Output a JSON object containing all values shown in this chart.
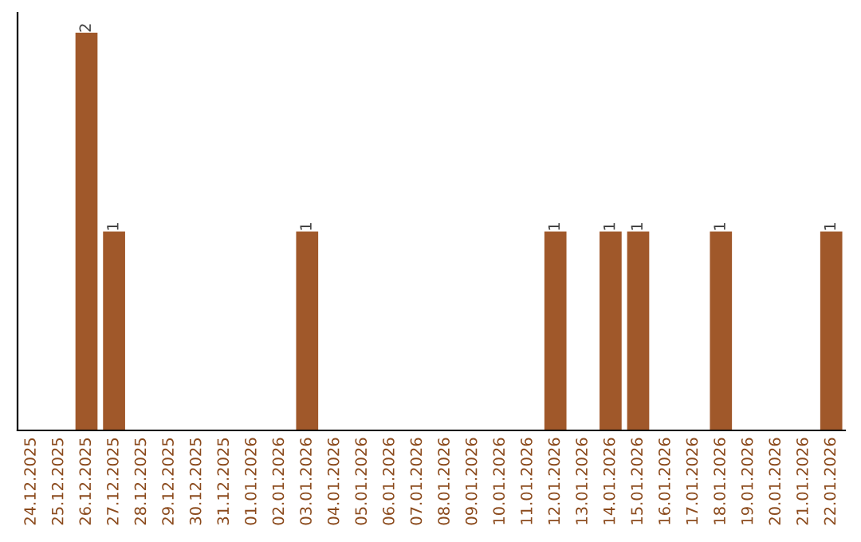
{
  "chart_data": {
    "type": "bar",
    "categories": [
      "24.12.2025",
      "25.12.2025",
      "26.12.2025",
      "27.12.2025",
      "28.12.2025",
      "29.12.2025",
      "30.12.2025",
      "31.12.2025",
      "01.01.2026",
      "02.01.2026",
      "03.01.2026",
      "04.01.2026",
      "05.01.2026",
      "06.01.2026",
      "07.01.2026",
      "08.01.2026",
      "09.01.2026",
      "10.01.2026",
      "11.01.2026",
      "12.01.2026",
      "13.01.2026",
      "14.01.2026",
      "15.01.2026",
      "16.01.2026",
      "17.01.2026",
      "18.01.2026",
      "19.01.2026",
      "20.01.2026",
      "21.01.2026",
      "22.01.2026"
    ],
    "values": [
      0,
      0,
      2,
      1,
      0,
      0,
      0,
      0,
      0,
      0,
      1,
      0,
      0,
      0,
      0,
      0,
      0,
      0,
      0,
      1,
      0,
      1,
      1,
      0,
      0,
      1,
      0,
      0,
      0,
      1
    ],
    "value_labels": [
      null,
      null,
      "2",
      "1",
      null,
      null,
      null,
      null,
      null,
      null,
      "1",
      null,
      null,
      null,
      null,
      null,
      null,
      null,
      null,
      "1",
      null,
      "1",
      "1",
      null,
      null,
      "1",
      null,
      null,
      null,
      "1"
    ],
    "color": "#a0582a",
    "ylim": [
      0,
      2.1
    ],
    "tick_labels": "x",
    "grid": false,
    "legend": false
  }
}
